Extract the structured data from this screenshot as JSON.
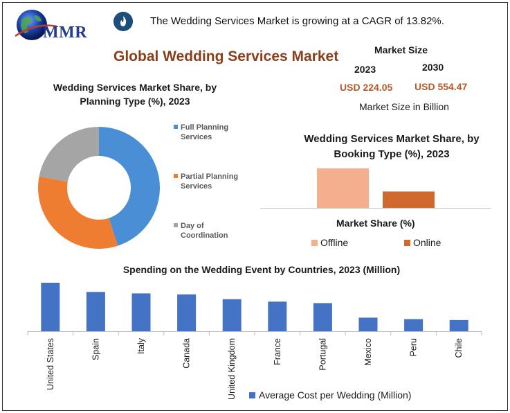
{
  "header": {
    "logo_text": "MMR",
    "banner_text": "The Wedding Services Market is growing at a CAGR of 13.82%.",
    "title": "Global Wedding Services Market"
  },
  "market_size": {
    "label": "Market Size",
    "year_a": "2023",
    "year_b": "2030",
    "value_a": "USD 224.05",
    "value_b": "USD 554.47",
    "unit": "Market Size in Billion"
  },
  "colors": {
    "blue": "#4a8fd6",
    "orange": "#ee7d31",
    "gray": "#a5a5a5",
    "salmon": "#f3af8e",
    "rust": "#d0692d",
    "bar_blue": "#4472c4",
    "title_brown": "#8a3f1c"
  },
  "chart_data": [
    {
      "type": "pie",
      "title": "Wedding Services Market Share, by Planning Type (%), 2023",
      "categories": [
        "Full Planning Services",
        "Partial Planning Services",
        "Day of Coordination"
      ],
      "legend_lines": [
        [
          "Full Planning",
          "Services"
        ],
        [
          "Partial Planning",
          "Services"
        ],
        [
          "Day of",
          "Coordination"
        ]
      ],
      "values": [
        45,
        33,
        22
      ],
      "colors": [
        "#4a8fd6",
        "#ee7d31",
        "#a5a5a5"
      ],
      "donut": true,
      "legend": "right"
    },
    {
      "type": "bar",
      "title": "Wedding Services Market Share, by Booking Type (%), 2023",
      "xlabel": "Market Share (%)",
      "categories": [
        "Offline",
        "Online"
      ],
      "values": [
        58,
        24
      ],
      "ylim": [
        0,
        60
      ],
      "colors": [
        "#f3af8e",
        "#d0692d"
      ],
      "legend": "bottom"
    },
    {
      "type": "bar",
      "title": "Spending on the Wedding Event by Countries, 2023 (Million)",
      "categories": [
        "United States",
        "Spain",
        "Italy",
        "Canada",
        "United Kingdom",
        "France",
        "Portugal",
        "Mexico",
        "Peru",
        "Chile"
      ],
      "series": [
        {
          "name": "Average Cost per Wedding (Million)",
          "values": [
            100,
            81,
            78,
            76,
            66,
            61,
            58,
            28,
            25,
            23
          ]
        }
      ],
      "ylim": [
        0,
        100
      ],
      "legend": "bottom"
    }
  ]
}
